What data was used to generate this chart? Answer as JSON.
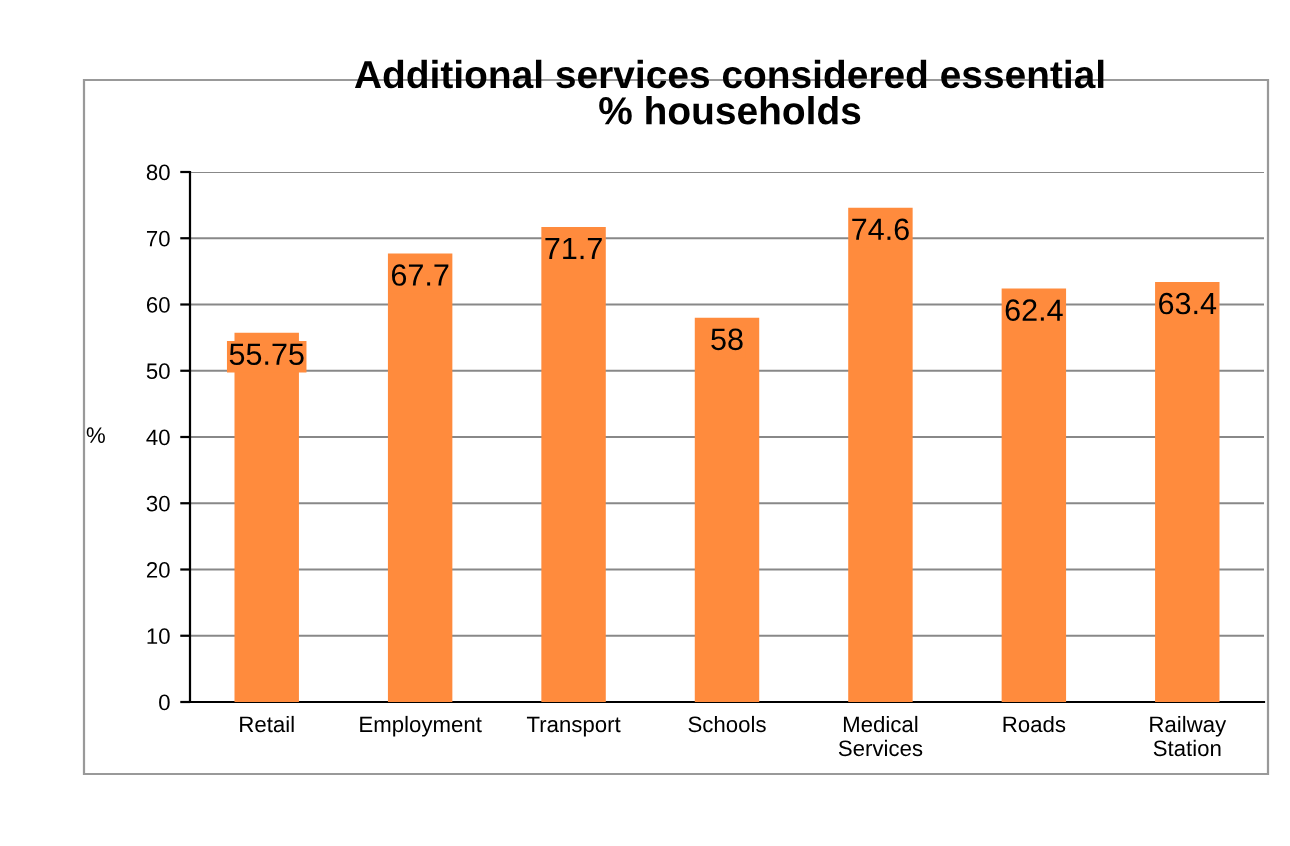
{
  "chart_data": {
    "type": "bar",
    "title": "Additional services considered essential",
    "subtitle": "% households",
    "ylabel": "%",
    "categories": [
      "Retail",
      "Employment",
      "Transport",
      "Schools",
      "Medical Services",
      "Roads",
      "Railway Station"
    ],
    "values": [
      55.75,
      67.7,
      71.7,
      58,
      74.6,
      62.4,
      63.4
    ],
    "color": "#ff8b3d",
    "ylim": [
      0,
      80
    ],
    "yticks": [
      0,
      10,
      20,
      30,
      40,
      50,
      60,
      70,
      80
    ],
    "grid": "y",
    "data_labels": true
  }
}
